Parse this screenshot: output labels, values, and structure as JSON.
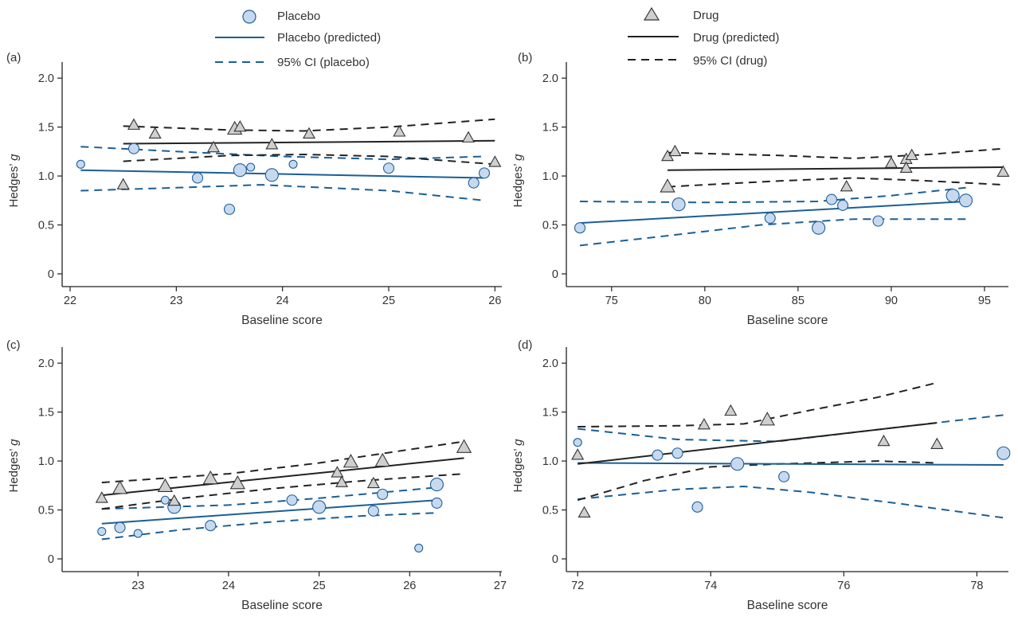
{
  "colors": {
    "placebo_fill": "#c7d9ef",
    "placebo_stroke": "#1f5f99",
    "placebo_line": "#1a5f96",
    "drug_fill": "#cfcfcf",
    "drug_stroke": "#333333",
    "drug_line": "#222222",
    "axis": "#222222"
  },
  "legend": {
    "placebo": {
      "marker_label": "Placebo",
      "line_label": "Placebo (predicted)",
      "ci_label": "95% CI (placebo)"
    },
    "drug": {
      "marker_label": "Drug",
      "line_label": "Drug (predicted)",
      "ci_label": "95% CI (drug)"
    }
  },
  "chart_data": [
    {
      "panel": "(a)",
      "type": "scatter",
      "xlabel": "Baseline score",
      "ylabel": "Hedges’ g",
      "xlim": [
        22,
        26.05
      ],
      "ylim": [
        0,
        2.05
      ],
      "xticks": [
        22,
        23,
        24,
        25,
        26
      ],
      "yticks": [
        0,
        0.5,
        1.0,
        1.5,
        2.0
      ],
      "xtick_labels": [
        "22",
        "23",
        "24",
        "25",
        "26"
      ],
      "ytick_labels": [
        "0",
        "0.5",
        "1.0",
        "1.5",
        "2.0"
      ],
      "placebo_points": [
        {
          "x": 22.1,
          "y": 1.12,
          "s": "s"
        },
        {
          "x": 22.6,
          "y": 1.28,
          "s": "m"
        },
        {
          "x": 23.2,
          "y": 0.98,
          "s": "m"
        },
        {
          "x": 23.5,
          "y": 0.66,
          "s": "m"
        },
        {
          "x": 23.6,
          "y": 1.06,
          "s": "l"
        },
        {
          "x": 23.7,
          "y": 1.09,
          "s": "s"
        },
        {
          "x": 23.9,
          "y": 1.01,
          "s": "l"
        },
        {
          "x": 24.1,
          "y": 1.12,
          "s": "s"
        },
        {
          "x": 25.0,
          "y": 1.08,
          "s": "m"
        },
        {
          "x": 25.8,
          "y": 0.93,
          "s": "m"
        },
        {
          "x": 25.9,
          "y": 1.03,
          "s": "m"
        }
      ],
      "drug_points": [
        {
          "x": 22.5,
          "y": 0.91,
          "s": "m"
        },
        {
          "x": 22.6,
          "y": 1.52,
          "s": "m"
        },
        {
          "x": 22.8,
          "y": 1.43,
          "s": "m"
        },
        {
          "x": 23.35,
          "y": 1.29,
          "s": "m"
        },
        {
          "x": 23.55,
          "y": 1.48,
          "s": "l"
        },
        {
          "x": 23.6,
          "y": 1.5,
          "s": "m"
        },
        {
          "x": 23.9,
          "y": 1.32,
          "s": "m"
        },
        {
          "x": 24.25,
          "y": 1.43,
          "s": "m"
        },
        {
          "x": 25.1,
          "y": 1.45,
          "s": "m"
        },
        {
          "x": 25.75,
          "y": 1.39,
          "s": "m"
        },
        {
          "x": 26.0,
          "y": 1.14,
          "s": "m"
        }
      ],
      "placebo_pred": [
        [
          22.1,
          1.06
        ],
        [
          25.9,
          0.98
        ]
      ],
      "placebo_ci_upper": [
        [
          22.1,
          1.3
        ],
        [
          23,
          1.25
        ],
        [
          24,
          1.2
        ],
        [
          25,
          1.17
        ],
        [
          25.9,
          1.2
        ]
      ],
      "placebo_ci_lower": [
        [
          22.1,
          0.85
        ],
        [
          23,
          0.88
        ],
        [
          23.8,
          0.91
        ],
        [
          25,
          0.85
        ],
        [
          25.9,
          0.75
        ]
      ],
      "drug_pred": [
        [
          22.5,
          1.33
        ],
        [
          26.0,
          1.36
        ]
      ],
      "drug_ci_upper": [
        [
          22.5,
          1.51
        ],
        [
          23.5,
          1.47
        ],
        [
          24.2,
          1.46
        ],
        [
          25,
          1.5
        ],
        [
          26.0,
          1.58
        ]
      ],
      "drug_ci_lower": [
        [
          22.5,
          1.15
        ],
        [
          23.5,
          1.21
        ],
        [
          24.2,
          1.22
        ],
        [
          25,
          1.2
        ],
        [
          26.0,
          1.12
        ]
      ]
    },
    {
      "panel": "(b)",
      "type": "scatter",
      "xlabel": "Baseline score",
      "ylabel": "Hedges’ g",
      "xlim": [
        73,
        96.2
      ],
      "ylim": [
        0,
        2.05
      ],
      "xticks": [
        75,
        80,
        85,
        90,
        95
      ],
      "yticks": [
        0,
        0.5,
        1.0,
        1.5,
        2.0
      ],
      "xtick_labels": [
        "75",
        "80",
        "85",
        "90",
        "95"
      ],
      "ytick_labels": [
        "0",
        "0.5",
        "1.0",
        "1.5",
        "2.0"
      ],
      "placebo_points": [
        {
          "x": 73.3,
          "y": 0.47,
          "s": "m"
        },
        {
          "x": 78.6,
          "y": 0.71,
          "s": "l"
        },
        {
          "x": 83.5,
          "y": 0.57,
          "s": "m"
        },
        {
          "x": 86.1,
          "y": 0.47,
          "s": "l"
        },
        {
          "x": 86.8,
          "y": 0.76,
          "s": "m"
        },
        {
          "x": 87.4,
          "y": 0.7,
          "s": "m"
        },
        {
          "x": 89.3,
          "y": 0.54,
          "s": "m"
        },
        {
          "x": 93.3,
          "y": 0.8,
          "s": "l"
        },
        {
          "x": 94.0,
          "y": 0.75,
          "s": "l"
        }
      ],
      "drug_points": [
        {
          "x": 78.0,
          "y": 1.2,
          "s": "m"
        },
        {
          "x": 78.0,
          "y": 0.89,
          "s": "l"
        },
        {
          "x": 78.4,
          "y": 1.25,
          "s": "m"
        },
        {
          "x": 87.6,
          "y": 0.89,
          "s": "m"
        },
        {
          "x": 90.0,
          "y": 1.13,
          "s": "m"
        },
        {
          "x": 90.8,
          "y": 1.17,
          "s": "m"
        },
        {
          "x": 90.8,
          "y": 1.08,
          "s": "m"
        },
        {
          "x": 91.1,
          "y": 1.21,
          "s": "m"
        },
        {
          "x": 96.0,
          "y": 1.04,
          "s": "m"
        }
      ],
      "placebo_pred": [
        [
          73.3,
          0.52
        ],
        [
          94.0,
          0.74
        ]
      ],
      "placebo_ci_upper": [
        [
          73.3,
          0.74
        ],
        [
          80,
          0.73
        ],
        [
          86,
          0.74
        ],
        [
          90,
          0.8
        ],
        [
          94.0,
          0.88
        ]
      ],
      "placebo_ci_lower": [
        [
          73.3,
          0.29
        ],
        [
          78,
          0.39
        ],
        [
          83,
          0.5
        ],
        [
          88,
          0.56
        ],
        [
          94.0,
          0.56
        ]
      ],
      "drug_pred": [
        [
          78.0,
          1.06
        ],
        [
          96.0,
          1.09
        ]
      ],
      "drug_ci_upper": [
        [
          78.0,
          1.24
        ],
        [
          84,
          1.21
        ],
        [
          88,
          1.18
        ],
        [
          92,
          1.22
        ],
        [
          96.0,
          1.28
        ]
      ],
      "drug_ci_lower": [
        [
          78.0,
          0.89
        ],
        [
          84,
          0.95
        ],
        [
          88,
          0.98
        ],
        [
          92,
          0.95
        ],
        [
          96.0,
          0.91
        ]
      ]
    },
    {
      "panel": "(c)",
      "type": "scatter",
      "xlabel": "Baseline score",
      "ylabel": "Hedges’ g",
      "xlim": [
        22.25,
        27.0
      ],
      "ylim": [
        0,
        2.05
      ],
      "xticks": [
        23,
        24,
        25,
        26,
        27
      ],
      "yticks": [
        0,
        0.5,
        1.0,
        1.5,
        2.0
      ],
      "xtick_labels": [
        "23",
        "24",
        "25",
        "26",
        "27"
      ],
      "ytick_labels": [
        "0",
        "0.5",
        "1.0",
        "1.5",
        "2.0"
      ],
      "placebo_points": [
        {
          "x": 22.6,
          "y": 0.28,
          "s": "s"
        },
        {
          "x": 22.8,
          "y": 0.32,
          "s": "m"
        },
        {
          "x": 23.0,
          "y": 0.26,
          "s": "s"
        },
        {
          "x": 23.3,
          "y": 0.6,
          "s": "s"
        },
        {
          "x": 23.4,
          "y": 0.53,
          "s": "l"
        },
        {
          "x": 23.8,
          "y": 0.34,
          "s": "m"
        },
        {
          "x": 24.7,
          "y": 0.6,
          "s": "m"
        },
        {
          "x": 25.0,
          "y": 0.53,
          "s": "l"
        },
        {
          "x": 25.6,
          "y": 0.49,
          "s": "m"
        },
        {
          "x": 25.7,
          "y": 0.66,
          "s": "m"
        },
        {
          "x": 26.1,
          "y": 0.11,
          "s": "s"
        },
        {
          "x": 26.3,
          "y": 0.57,
          "s": "m"
        },
        {
          "x": 26.3,
          "y": 0.76,
          "s": "l"
        }
      ],
      "drug_points": [
        {
          "x": 22.6,
          "y": 0.62,
          "s": "m"
        },
        {
          "x": 22.8,
          "y": 0.72,
          "s": "l"
        },
        {
          "x": 23.3,
          "y": 0.74,
          "s": "l"
        },
        {
          "x": 23.4,
          "y": 0.59,
          "s": "m"
        },
        {
          "x": 23.8,
          "y": 0.82,
          "s": "l"
        },
        {
          "x": 24.1,
          "y": 0.77,
          "s": "l"
        },
        {
          "x": 25.2,
          "y": 0.88,
          "s": "m"
        },
        {
          "x": 25.25,
          "y": 0.78,
          "s": "m"
        },
        {
          "x": 25.35,
          "y": 0.99,
          "s": "l"
        },
        {
          "x": 25.6,
          "y": 0.77,
          "s": "m"
        },
        {
          "x": 25.7,
          "y": 1.0,
          "s": "l"
        },
        {
          "x": 26.6,
          "y": 1.14,
          "s": "l"
        }
      ],
      "placebo_pred": [
        [
          22.6,
          0.36
        ],
        [
          26.3,
          0.6
        ]
      ],
      "placebo_ci_upper": [
        [
          22.6,
          0.51
        ],
        [
          24,
          0.55
        ],
        [
          25,
          0.62
        ],
        [
          26.3,
          0.73
        ]
      ],
      "placebo_ci_lower": [
        [
          22.6,
          0.2
        ],
        [
          23.5,
          0.3
        ],
        [
          24.5,
          0.38
        ],
        [
          25.5,
          0.44
        ],
        [
          26.3,
          0.47
        ]
      ],
      "drug_pred": [
        [
          22.6,
          0.65
        ],
        [
          26.6,
          1.03
        ]
      ],
      "drug_ci_upper": [
        [
          22.6,
          0.78
        ],
        [
          24,
          0.87
        ],
        [
          25,
          0.98
        ],
        [
          26.6,
          1.2
        ]
      ],
      "drug_ci_lower": [
        [
          22.6,
          0.51
        ],
        [
          23.5,
          0.62
        ],
        [
          24.5,
          0.72
        ],
        [
          25.5,
          0.8
        ],
        [
          26.6,
          0.87
        ]
      ]
    },
    {
      "panel": "(d)",
      "type": "scatter",
      "xlabel": "Baseline score",
      "ylabel": "Hedges’ g",
      "xlim": [
        71.95,
        78.45
      ],
      "ylim": [
        0,
        2.05
      ],
      "xticks": [
        72,
        74,
        76,
        78
      ],
      "yticks": [
        0,
        0.5,
        1.0,
        1.5,
        2.0
      ],
      "xtick_labels": [
        "72",
        "74",
        "76",
        "78"
      ],
      "ytick_labels": [
        "0",
        "0.5",
        "1.0",
        "1.5",
        "2.0"
      ],
      "placebo_points": [
        {
          "x": 72.0,
          "y": 1.19,
          "s": "s"
        },
        {
          "x": 73.2,
          "y": 1.06,
          "s": "m"
        },
        {
          "x": 73.5,
          "y": 1.08,
          "s": "m"
        },
        {
          "x": 73.8,
          "y": 0.53,
          "s": "m"
        },
        {
          "x": 74.4,
          "y": 0.97,
          "s": "l"
        },
        {
          "x": 75.1,
          "y": 0.84,
          "s": "m"
        },
        {
          "x": 78.4,
          "y": 1.08,
          "s": "l"
        }
      ],
      "drug_points": [
        {
          "x": 72.0,
          "y": 1.06,
          "s": "m"
        },
        {
          "x": 72.1,
          "y": 0.47,
          "s": "m"
        },
        {
          "x": 73.9,
          "y": 1.37,
          "s": "m"
        },
        {
          "x": 74.3,
          "y": 1.51,
          "s": "m"
        },
        {
          "x": 74.85,
          "y": 1.42,
          "s": "l"
        },
        {
          "x": 76.6,
          "y": 1.2,
          "s": "m"
        },
        {
          "x": 77.4,
          "y": 1.17,
          "s": "m"
        }
      ],
      "placebo_pred": [
        [
          72.0,
          0.98
        ],
        [
          78.4,
          0.96
        ]
      ],
      "placebo_ci_upper": [
        [
          72.0,
          1.33
        ],
        [
          73.5,
          1.22
        ],
        [
          75,
          1.2
        ],
        [
          76.5,
          1.32
        ],
        [
          78.4,
          1.47
        ]
      ],
      "placebo_ci_lower": [
        [
          72.0,
          0.61
        ],
        [
          73.5,
          0.71
        ],
        [
          74.5,
          0.74
        ],
        [
          75.5,
          0.68
        ],
        [
          77,
          0.55
        ],
        [
          78.4,
          0.42
        ]
      ],
      "drug_pred": [
        [
          72.0,
          0.97
        ],
        [
          77.4,
          1.39
        ]
      ],
      "drug_ci_upper": [
        [
          72.0,
          1.35
        ],
        [
          73.5,
          1.36
        ],
        [
          74.5,
          1.38
        ],
        [
          75.5,
          1.52
        ],
        [
          76.5,
          1.65
        ],
        [
          77.4,
          1.8
        ]
      ],
      "drug_ci_lower": [
        [
          72.0,
          0.6
        ],
        [
          73,
          0.8
        ],
        [
          74,
          0.94
        ],
        [
          75,
          0.97
        ],
        [
          76.5,
          1.0
        ],
        [
          77.4,
          0.98
        ]
      ]
    }
  ]
}
